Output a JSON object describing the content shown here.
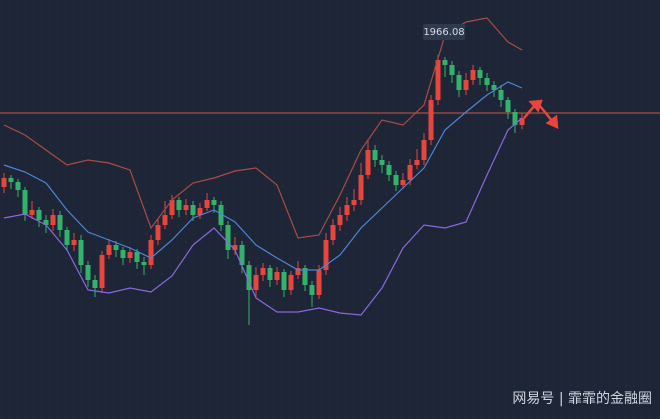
{
  "chart_data": {
    "type": "candlestick",
    "ylim": [
      1784,
      1993.5
    ],
    "up_color": "#e8453c",
    "down_color": "#33b26b",
    "level": 1937,
    "level_color": "#c8564a",
    "open": [
      1900,
      1904.5,
      1902.5,
      1898.5,
      1886,
      1888.5,
      1883.5,
      1881,
      1886,
      1878.5,
      1871,
      1873.5,
      1861,
      1853.5,
      1849.5,
      1866,
      1871,
      1868.5,
      1864.5,
      1867.5,
      1862.5,
      1861,
      1873.5,
      1881,
      1886,
      1893.5,
      1888.5,
      1891,
      1886,
      1889.5,
      1893.5,
      1891,
      1881,
      1868.5,
      1871,
      1861,
      1848.5,
      1856,
      1859.5,
      1853.5,
      1857.5,
      1848.5,
      1856,
      1859.5,
      1851,
      1846,
      1858.5,
      1873.5,
      1881,
      1886,
      1891,
      1893.5,
      1906,
      1918.5,
      1913.5,
      1911,
      1906,
      1901,
      1903.5,
      1911,
      1913.5,
      1923.5,
      1943.5,
      1963.5,
      1961,
      1956,
      1948.5,
      1953.5,
      1958.5,
      1954.5,
      1951,
      1948.5,
      1943.5,
      1937.5,
      1931
    ],
    "high": [
      1907,
      1906,
      1904,
      1900,
      1893,
      1890,
      1886,
      1889,
      1888,
      1880,
      1877,
      1876,
      1863,
      1856,
      1868,
      1874,
      1873,
      1870,
      1870,
      1869,
      1865,
      1876,
      1884,
      1893,
      1896,
      1895,
      1894,
      1893,
      1892,
      1897,
      1895,
      1893,
      1883,
      1875,
      1873,
      1863,
      1860,
      1862,
      1861,
      1860,
      1859,
      1858,
      1863,
      1861,
      1853,
      1861,
      1877,
      1884,
      1890,
      1895,
      1899,
      1912,
      1924,
      1921,
      1916,
      1913,
      1908,
      1907,
      1914,
      1919,
      1927,
      1946,
      1966.08,
      1965,
      1963,
      1958,
      1957,
      1961,
      1960,
      1957,
      1953,
      1951,
      1945,
      1939,
      1937
    ],
    "low": [
      1897,
      1899,
      1895,
      1883,
      1884,
      1880,
      1877,
      1878,
      1875,
      1868,
      1868,
      1857,
      1850,
      1845,
      1847,
      1864,
      1865,
      1861,
      1862,
      1859,
      1856,
      1859,
      1871,
      1879,
      1884,
      1885,
      1886,
      1883,
      1884,
      1888,
      1887,
      1878,
      1864,
      1866,
      1857,
      1831,
      1845,
      1853,
      1850,
      1851,
      1845,
      1846,
      1854,
      1848,
      1840,
      1844,
      1856,
      1871,
      1878,
      1883,
      1888,
      1891,
      1904,
      1910,
      1907,
      1903,
      1898,
      1899,
      1901,
      1909,
      1911,
      1921,
      1941,
      1955,
      1952,
      1945,
      1946,
      1951,
      1951,
      1948,
      1945,
      1940,
      1934,
      1927,
      1929
    ],
    "close": [
      1904.5,
      1902.5,
      1898.5,
      1886,
      1888.5,
      1883.5,
      1881,
      1886,
      1878.5,
      1871,
      1873.5,
      1861,
      1853.5,
      1849.5,
      1866,
      1871,
      1868.5,
      1864.5,
      1867.5,
      1862.5,
      1861,
      1873.5,
      1881,
      1886,
      1893.5,
      1888.5,
      1891,
      1886,
      1889.5,
      1893.5,
      1891,
      1881,
      1868.5,
      1871,
      1861,
      1848.5,
      1856,
      1859.5,
      1853.5,
      1857.5,
      1848.5,
      1856,
      1859.5,
      1851,
      1846,
      1858.5,
      1873.5,
      1881,
      1886,
      1891,
      1893.5,
      1906,
      1918.5,
      1913.5,
      1911,
      1906,
      1901,
      1903.5,
      1911,
      1913.5,
      1923.5,
      1943.5,
      1963.5,
      1961,
      1956,
      1948.5,
      1953.5,
      1958.5,
      1954.5,
      1951,
      1948.5,
      1943.5,
      1937.5,
      1931,
      1934.5
    ],
    "bands": {
      "x": [
        0,
        3,
        6,
        9,
        12,
        15,
        18,
        21,
        24,
        27,
        30,
        33,
        36,
        39,
        42,
        45,
        48,
        51,
        54,
        57,
        60,
        63,
        66,
        69,
        72,
        74
      ],
      "series": [
        {
          "color": "#a94c45",
          "values": [
            1931,
            1926,
            1918.5,
            1911,
            1913.5,
            1912,
            1908.5,
            1879.5,
            1893.5,
            1902,
            1904.5,
            1908,
            1909.5,
            1901,
            1874.5,
            1876,
            1896,
            1918.5,
            1933.5,
            1931,
            1941,
            1976,
            1982.5,
            1984.5,
            1972.5,
            1968.5
          ]
        },
        {
          "color": "#4d86d6",
          "values": [
            1911,
            1907.5,
            1902,
            1888.5,
            1877.5,
            1873.5,
            1869.5,
            1864.5,
            1873.5,
            1884.5,
            1888.5,
            1882.5,
            1871,
            1864.5,
            1858.5,
            1858.5,
            1866,
            1879.5,
            1889.5,
            1899.5,
            1909.5,
            1928.5,
            1937.5,
            1946,
            1952.5,
            1949.5
          ]
        },
        {
          "color": "#8a68e0",
          "values": [
            1884.5,
            1886.5,
            1881,
            1868.5,
            1848.5,
            1847,
            1849.5,
            1847.5,
            1855.5,
            1871,
            1879.5,
            1868.5,
            1844.5,
            1837.5,
            1837.5,
            1839.5,
            1837,
            1836,
            1849.5,
            1869.5,
            1881,
            1879.5,
            1882.5,
            1906,
            1928.5,
            1934.5
          ]
        }
      ]
    },
    "watermark": "网易号 | 霏霏的金融圈"
  }
}
